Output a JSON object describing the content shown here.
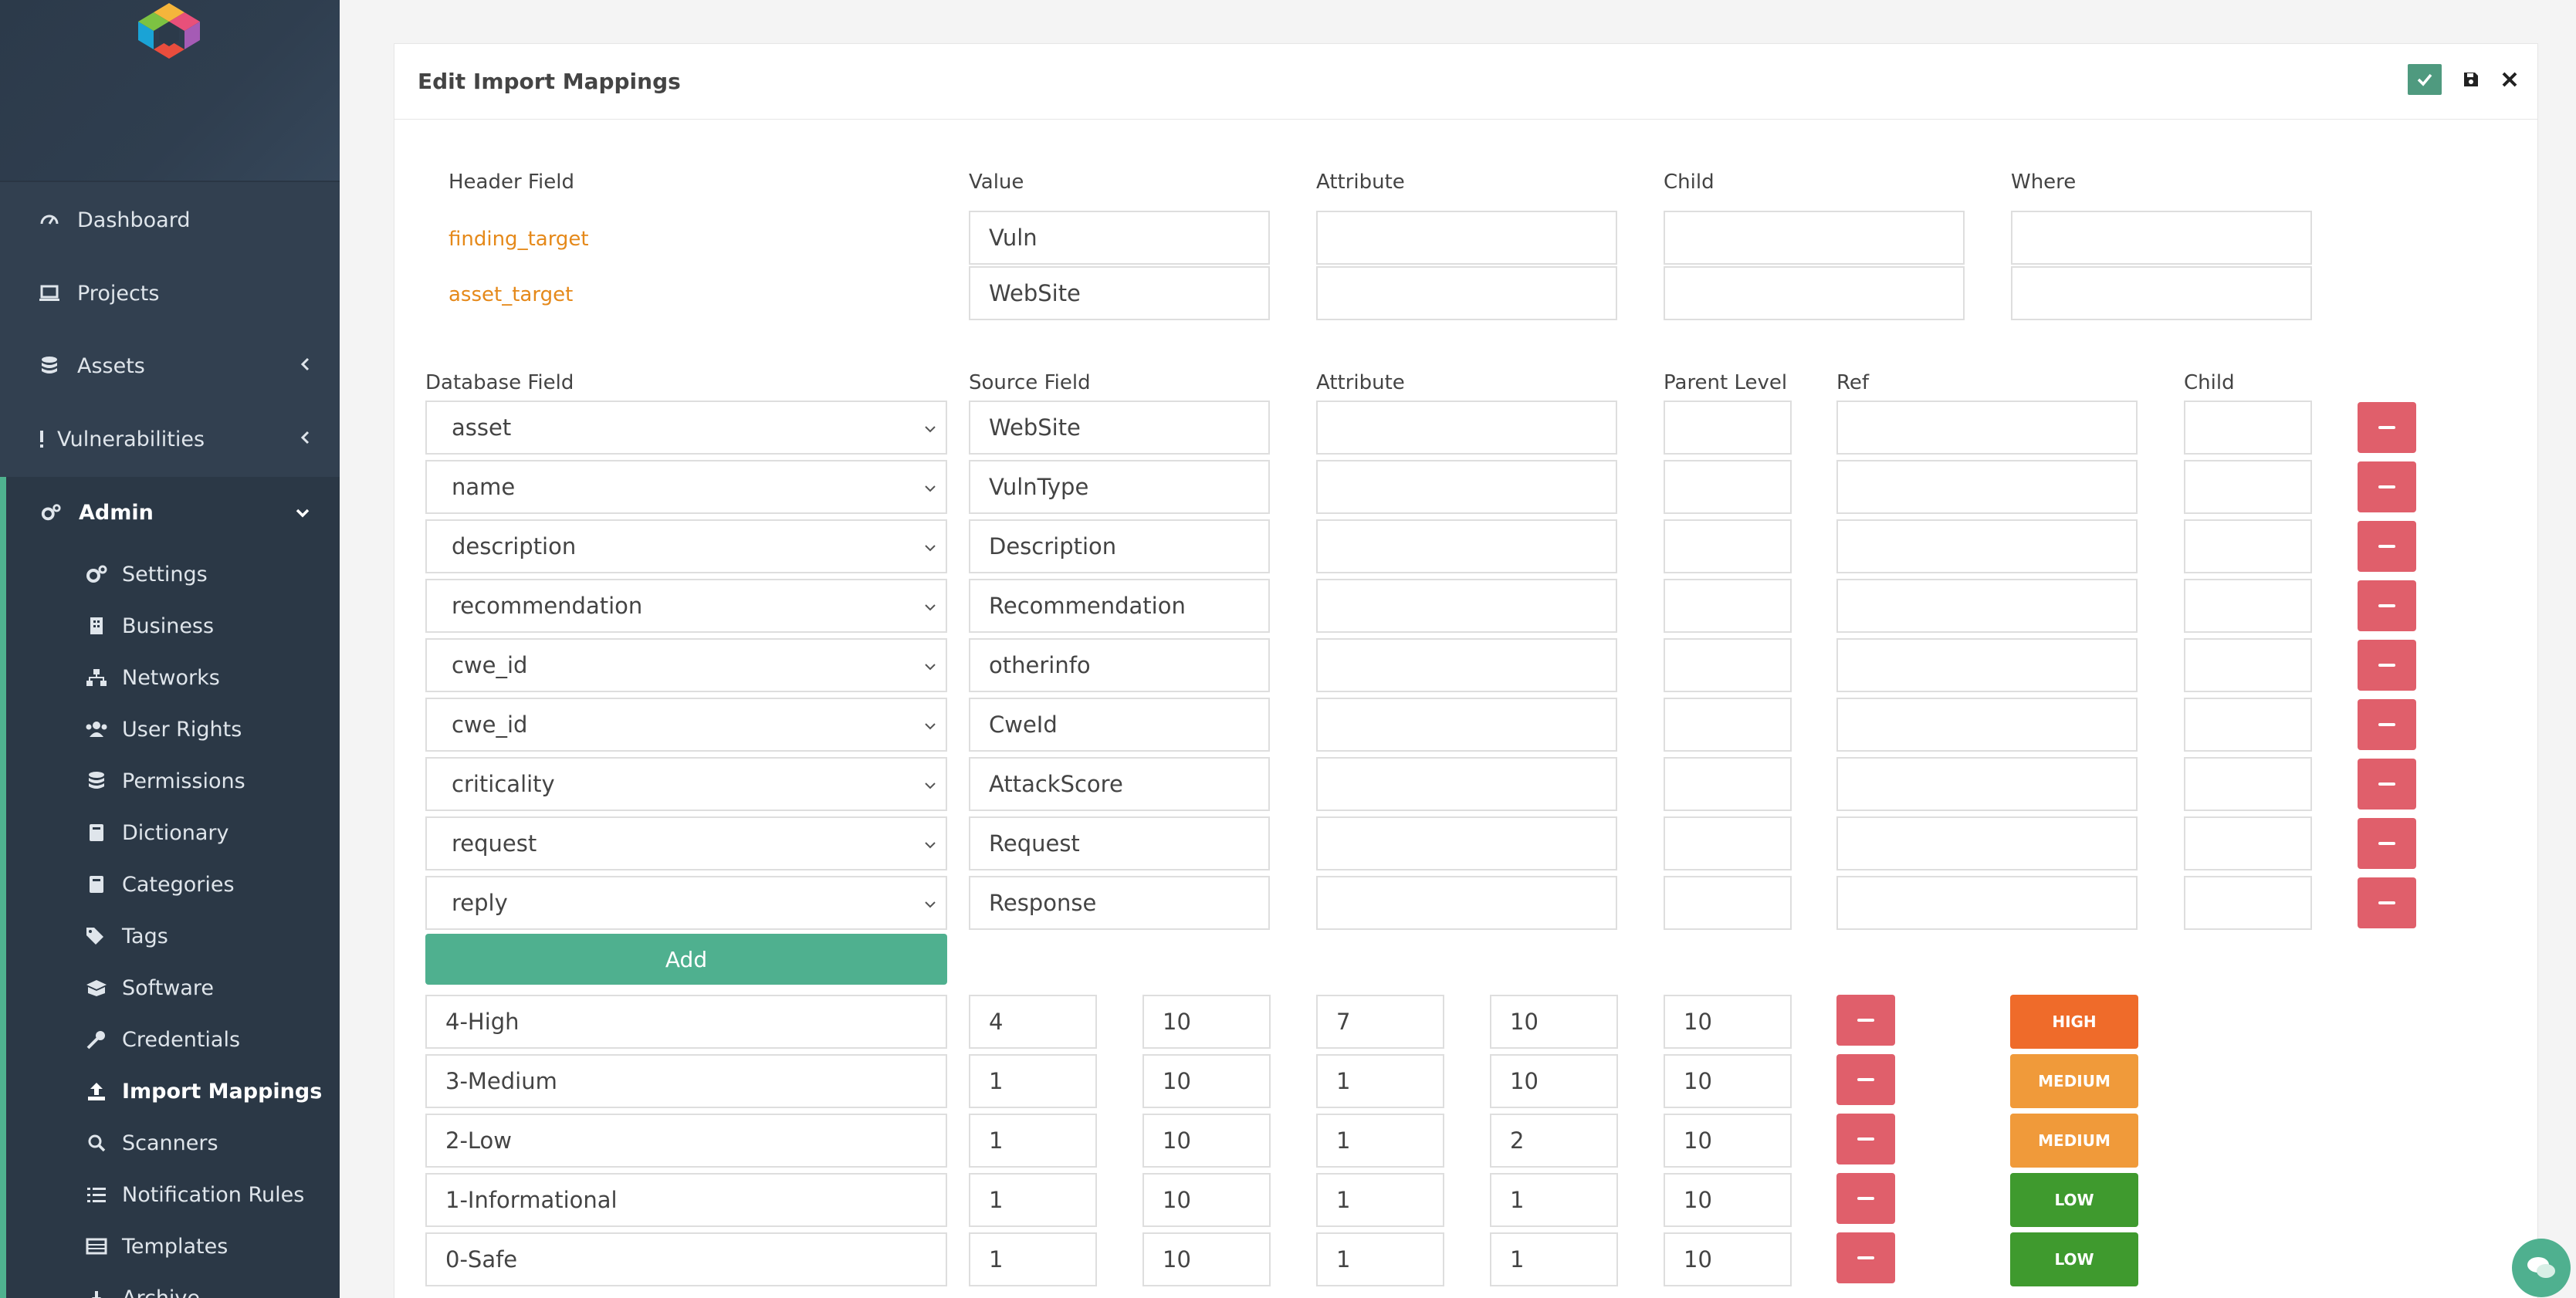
{
  "sidebar": {
    "nav": [
      {
        "label": "Dashboard",
        "icon": "dashboard-icon"
      },
      {
        "label": "Projects",
        "icon": "laptop-icon"
      },
      {
        "label": "Assets",
        "icon": "database-icon"
      },
      {
        "label": "Vulnerabilities",
        "icon": "exclamation-icon"
      },
      {
        "label": "Admin",
        "icon": "cogs-icon"
      }
    ],
    "admin_items": [
      {
        "label": "Settings",
        "icon": "cogs-icon"
      },
      {
        "label": "Business",
        "icon": "building-icon"
      },
      {
        "label": "Networks",
        "icon": "sitemap-icon"
      },
      {
        "label": "User Rights",
        "icon": "users-icon"
      },
      {
        "label": "Permissions",
        "icon": "database-icon"
      },
      {
        "label": "Dictionary",
        "icon": "book-icon"
      },
      {
        "label": "Categories",
        "icon": "book-icon"
      },
      {
        "label": "Tags",
        "icon": "tags-icon"
      },
      {
        "label": "Software",
        "icon": "box-icon"
      },
      {
        "label": "Credentials",
        "icon": "key-icon"
      },
      {
        "label": "Import Mappings",
        "icon": "upload-icon"
      },
      {
        "label": "Scanners",
        "icon": "search-icon"
      },
      {
        "label": "Notification Rules",
        "icon": "list-icon"
      },
      {
        "label": "Templates",
        "icon": "table-icon"
      },
      {
        "label": "Archive",
        "icon": "archive-icon"
      }
    ]
  },
  "panel": {
    "title": "Edit Import Mappings"
  },
  "header_section": {
    "columns": [
      "Header Field",
      "Value",
      "Attribute",
      "Child",
      "Where"
    ],
    "rows": [
      {
        "field": "finding_target",
        "value": "Vuln"
      },
      {
        "field": "asset_target",
        "value": "WebSite"
      }
    ]
  },
  "db_section": {
    "columns": [
      "Database Field",
      "Source Field",
      "Attribute",
      "Parent Level",
      "Ref",
      "Child"
    ],
    "rows": [
      {
        "db": "asset",
        "src": "WebSite"
      },
      {
        "db": "name",
        "src": "VulnType"
      },
      {
        "db": "description",
        "src": "Description"
      },
      {
        "db": "recommendation",
        "src": "Recommendation"
      },
      {
        "db": "cwe_id",
        "src": "otherinfo"
      },
      {
        "db": "cwe_id",
        "src": "CweId"
      },
      {
        "db": "criticality",
        "src": "AttackScore"
      },
      {
        "db": "request",
        "src": "Request"
      },
      {
        "db": "reply",
        "src": "Response"
      }
    ],
    "add_label": "Add"
  },
  "severity_section": {
    "rows": [
      {
        "name": "4-High",
        "v1": "4",
        "v2": "10",
        "v3": "7",
        "v4": "10",
        "v5": "10",
        "badge": "HIGH",
        "badge_color": "#ef6b2a"
      },
      {
        "name": "3-Medium",
        "v1": "1",
        "v2": "10",
        "v3": "1",
        "v4": "10",
        "v5": "10",
        "badge": "MEDIUM",
        "badge_color": "#f09a3a"
      },
      {
        "name": "2-Low",
        "v1": "1",
        "v2": "10",
        "v3": "1",
        "v4": "2",
        "v5": "10",
        "badge": "MEDIUM",
        "badge_color": "#f09a3a"
      },
      {
        "name": "1-Informational",
        "v1": "1",
        "v2": "10",
        "v3": "1",
        "v4": "1",
        "v5": "10",
        "badge": "LOW",
        "badge_color": "#3f9a2e"
      },
      {
        "name": "0-Safe",
        "v1": "1",
        "v2": "10",
        "v3": "1",
        "v4": "1",
        "v5": "10",
        "badge": "LOW",
        "badge_color": "#3f9a2e"
      }
    ]
  }
}
